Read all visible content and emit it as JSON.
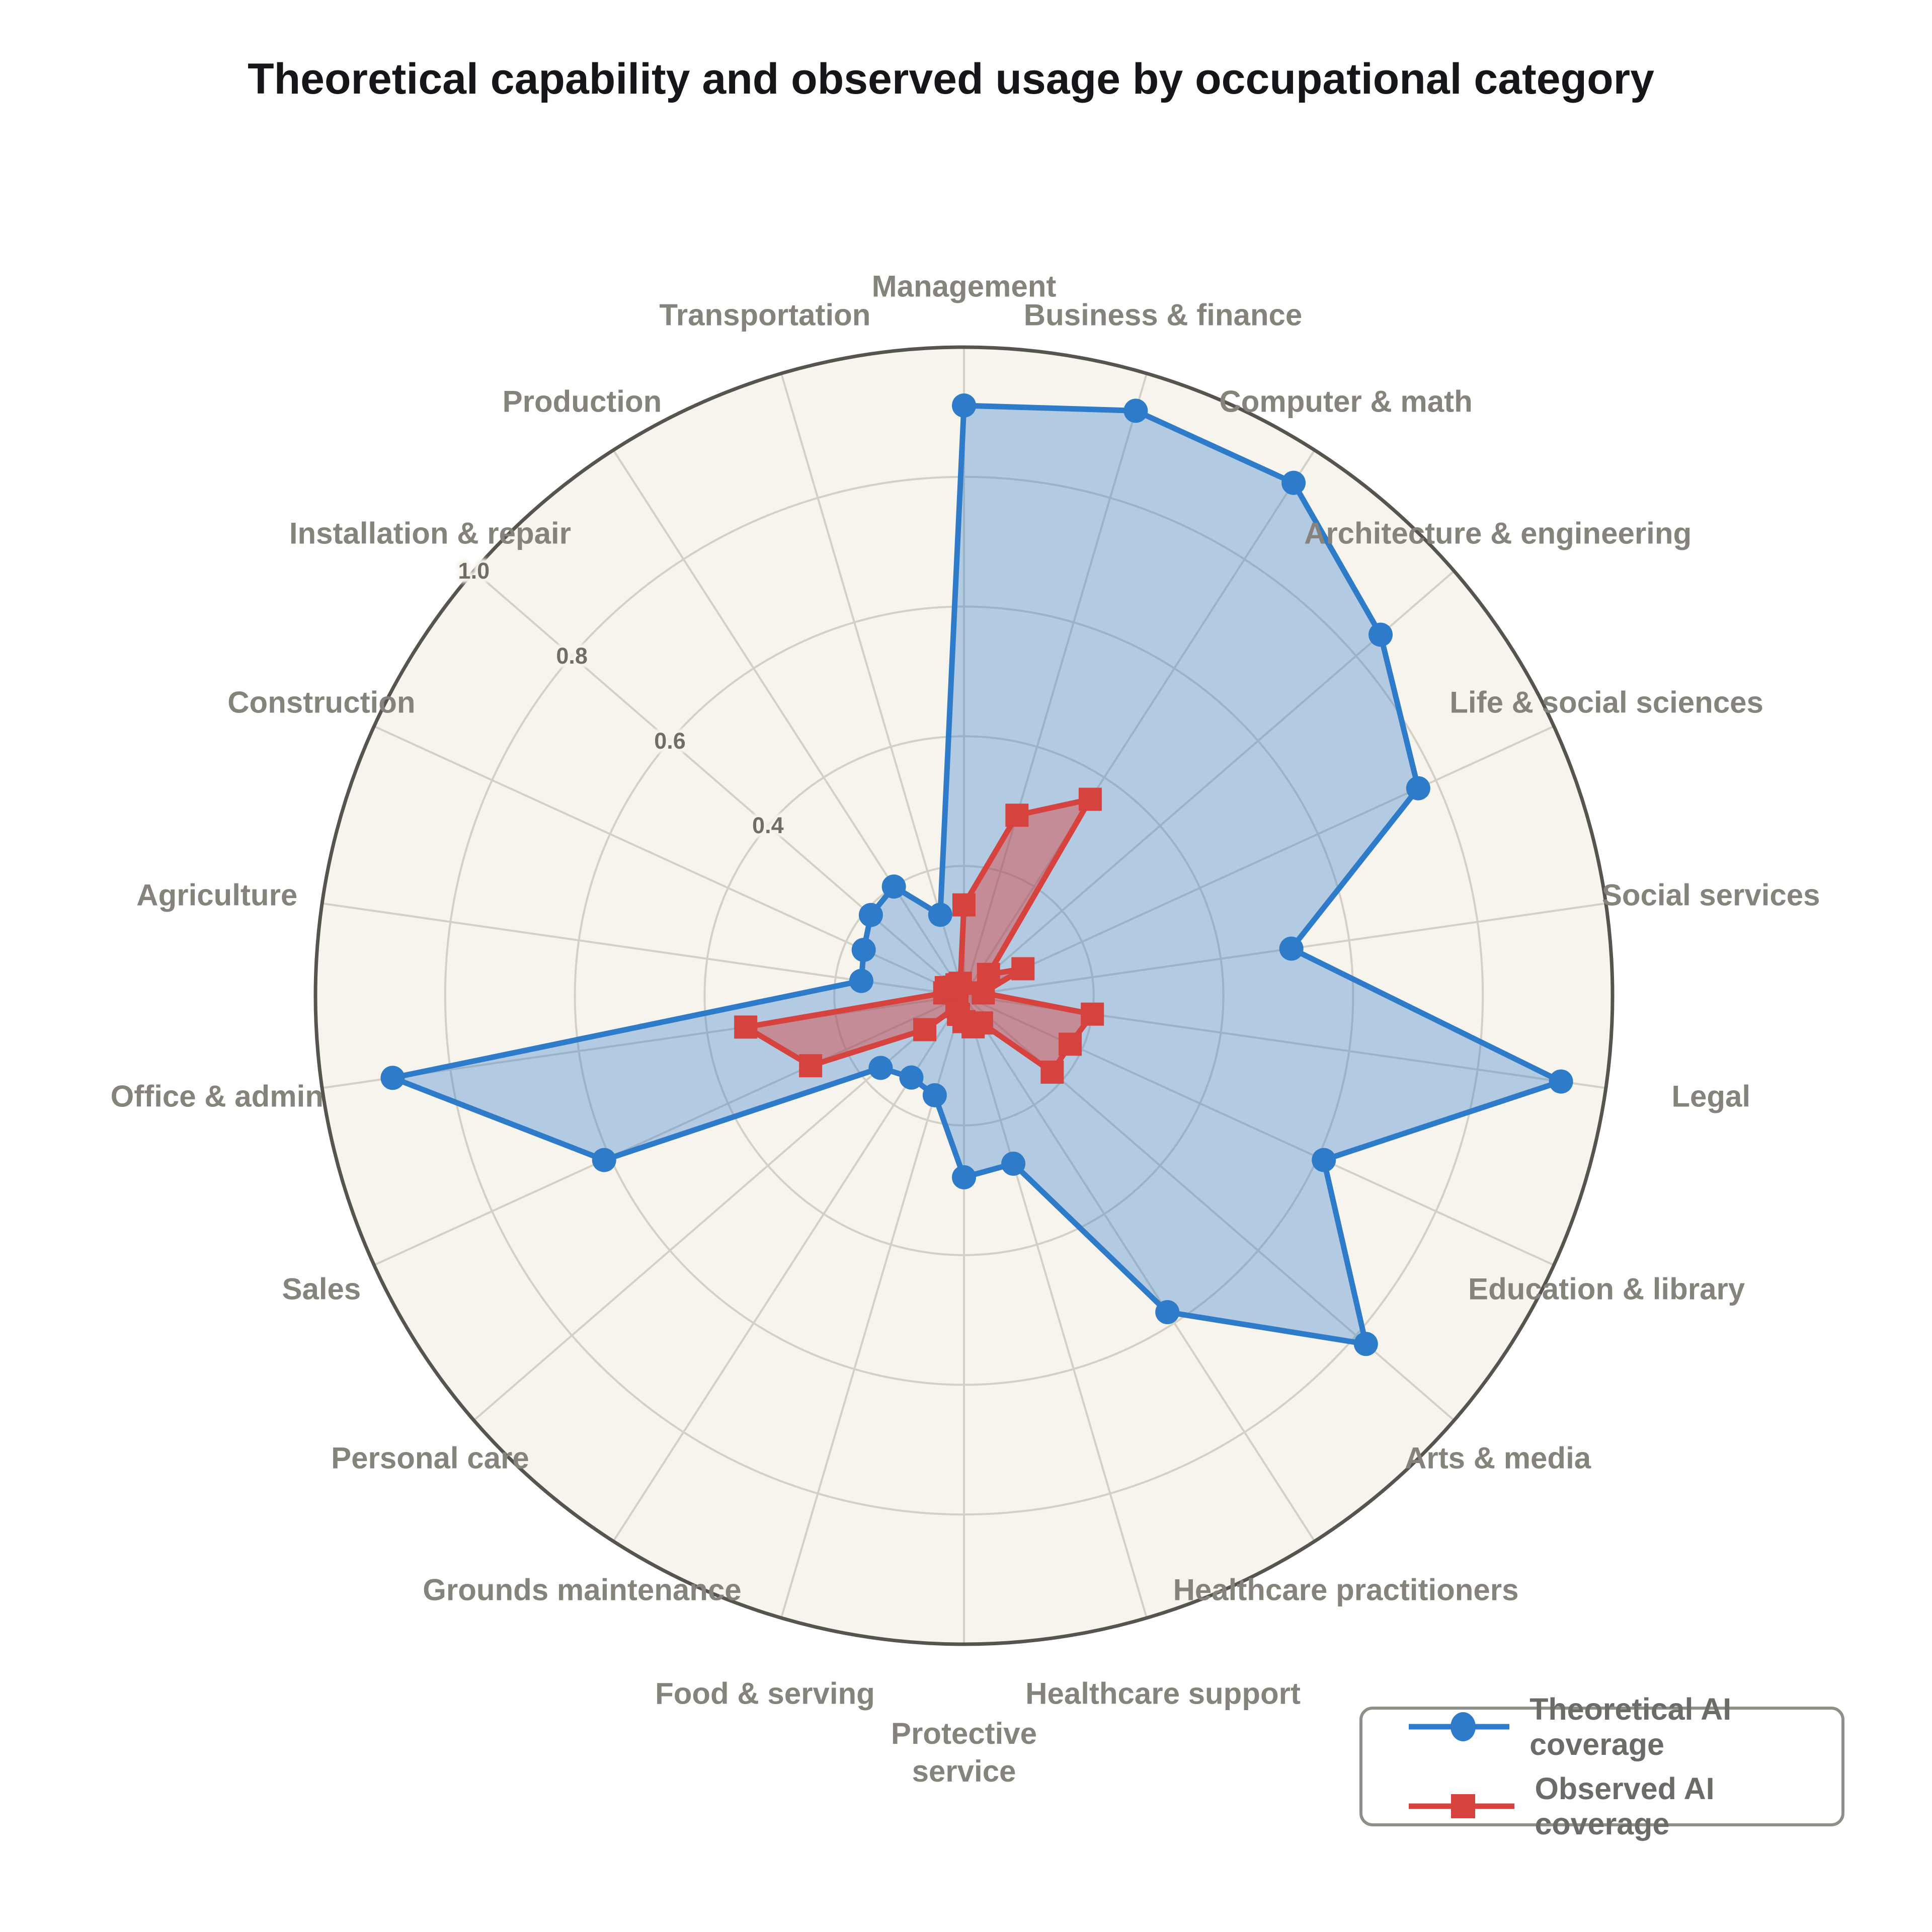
{
  "title": "Theoretical capability and observed usage by occupational category",
  "radial_axis": {
    "tick_labels": [
      "0.4",
      "0.6",
      "0.8",
      "1.0"
    ],
    "tick_values": [
      0.4,
      0.6,
      0.8,
      1.0
    ],
    "min": 0.0,
    "max": 1.0,
    "grid_step": 0.2
  },
  "legend": {
    "items": [
      {
        "label": "Theoretical AI coverage",
        "marker": "circle-marker-icon",
        "color": "#2e7cc9"
      },
      {
        "label": "Observed AI coverage",
        "marker": "square-marker-icon",
        "color": "#d6423d"
      }
    ]
  },
  "colors": {
    "theoretical_line": "#2e7cc9",
    "theoretical_fill": "rgba(46,124,201,0.34)",
    "observed_line": "#d6423d",
    "observed_fill": "rgba(214,66,61,0.46)",
    "polar_background": "#f7f4ee",
    "grid_line": "#d3d0c6",
    "outer_ring": "#56544f",
    "category_label": "#85837c",
    "tick_label": "#6f6d66",
    "title_color": "#15151a"
  },
  "chart_data": {
    "type": "line",
    "variant": "radar-polar-area",
    "title": "Theoretical capability and observed usage by occupational category",
    "xlabel": "",
    "ylabel": "",
    "rlim": [
      0,
      1.0
    ],
    "grid": true,
    "legend_position": "bottom-right",
    "start_angle_deg": 0,
    "direction": "clockwise",
    "categories": [
      "Management",
      "Business & finance",
      "Computer & math",
      "Architecture & engineering",
      "Life & social sciences",
      "Social services",
      "Legal",
      "Education & library",
      "Arts & media",
      "Healthcare practitioners",
      "Healthcare support",
      "Protective service",
      "Food & serving",
      "Grounds maintenance",
      "Personal care",
      "Sales",
      "Office & admin",
      "Agriculture",
      "Construction",
      "Installation & repair",
      "Production",
      "Transportation"
    ],
    "series": [
      {
        "name": "Theoretical AI coverage",
        "marker": "circle",
        "values": [
          0.91,
          0.94,
          0.94,
          0.85,
          0.77,
          0.51,
          0.93,
          0.61,
          0.82,
          0.58,
          0.27,
          0.28,
          0.16,
          0.15,
          0.17,
          0.61,
          0.89,
          0.16,
          0.17,
          0.19,
          0.2,
          0.13
        ]
      },
      {
        "name": "Observed AI coverage",
        "marker": "square",
        "values": [
          0.14,
          0.29,
          0.36,
          0.05,
          0.1,
          0.03,
          0.2,
          0.18,
          0.18,
          0.05,
          0.05,
          0.04,
          0.03,
          0.02,
          0.08,
          0.26,
          0.34,
          0.03,
          0.03,
          0.02,
          0.02,
          0.02
        ]
      }
    ]
  }
}
